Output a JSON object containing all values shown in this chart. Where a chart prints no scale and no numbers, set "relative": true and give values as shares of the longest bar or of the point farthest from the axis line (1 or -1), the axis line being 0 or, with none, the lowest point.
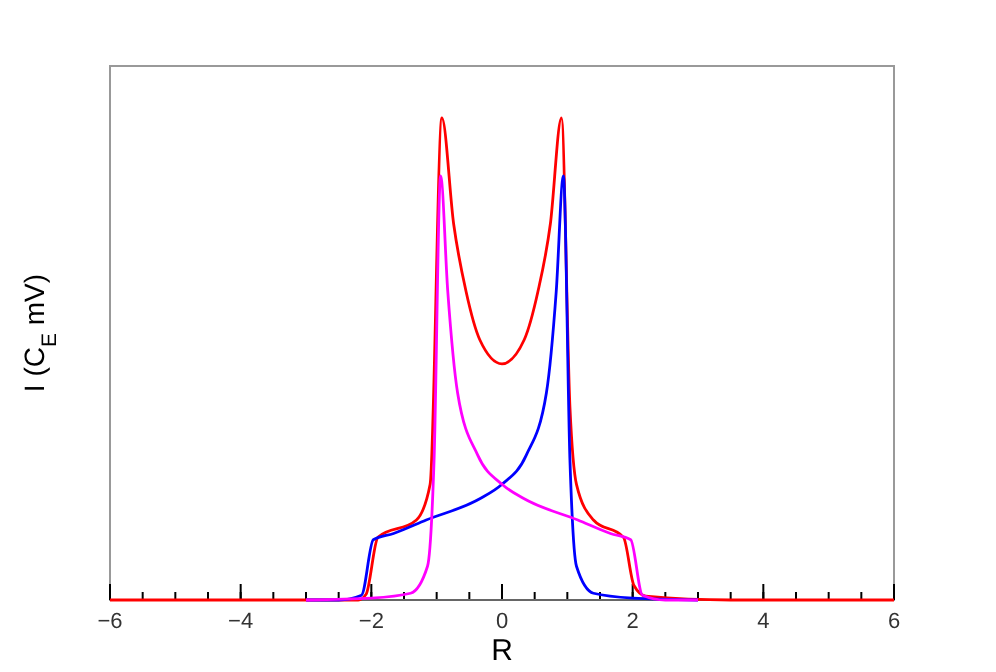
{
  "chart_data": {
    "type": "line",
    "xlabel": "R",
    "ylabel": "I (C$_{E}$ mV)",
    "relative": true,
    "xlim": [
      -6,
      6
    ],
    "xticks": [
      -6,
      -4,
      -2,
      0,
      2,
      4,
      6
    ],
    "series": [
      {
        "color": "#ff0000",
        "x": [
          -6,
          -3.5,
          -2.2,
          -2.08,
          -1.9,
          -1.31,
          -1.1,
          -0.92,
          -0.74,
          -0.55,
          -0.34,
          0,
          0.34,
          0.55,
          0.74,
          0.91,
          1.04,
          1.14,
          1.4,
          1.86,
          2.02,
          2.2,
          3.5,
          6
        ],
        "values": [
          0,
          0,
          0,
          0.012,
          0.13,
          0.166,
          0.24,
          1,
          0.78,
          0.64,
          0.54,
          0.49,
          0.54,
          0.64,
          0.78,
          1,
          0.4,
          0.24,
          0.166,
          0.13,
          0.03,
          0.008,
          0,
          0
        ]
      },
      {
        "color": "#0000ff",
        "x": [
          -3,
          -2.5,
          -2.15,
          -1.97,
          -1.66,
          -1.16,
          -0.34,
          0,
          0.37,
          0.68,
          0.83,
          0.94,
          1.04,
          1.14,
          1.4,
          2,
          3
        ],
        "values": [
          0,
          0,
          0.01,
          0.125,
          0.138,
          0.166,
          0.21,
          0.24,
          0.3,
          0.43,
          0.64,
          0.88,
          0.29,
          0.07,
          0.014,
          0.004,
          0
        ]
      },
      {
        "color": "#ff00ff",
        "x": [
          -3,
          -2,
          -1.4,
          -1.14,
          -1.04,
          -0.94,
          -0.83,
          -0.68,
          -0.37,
          0,
          0.34,
          1.16,
          1.66,
          1.97,
          2.15,
          2.5,
          3
        ],
        "values": [
          0,
          0.004,
          0.014,
          0.07,
          0.29,
          0.88,
          0.64,
          0.43,
          0.3,
          0.24,
          0.21,
          0.166,
          0.138,
          0.125,
          0.01,
          0,
          0
        ]
      }
    ]
  }
}
